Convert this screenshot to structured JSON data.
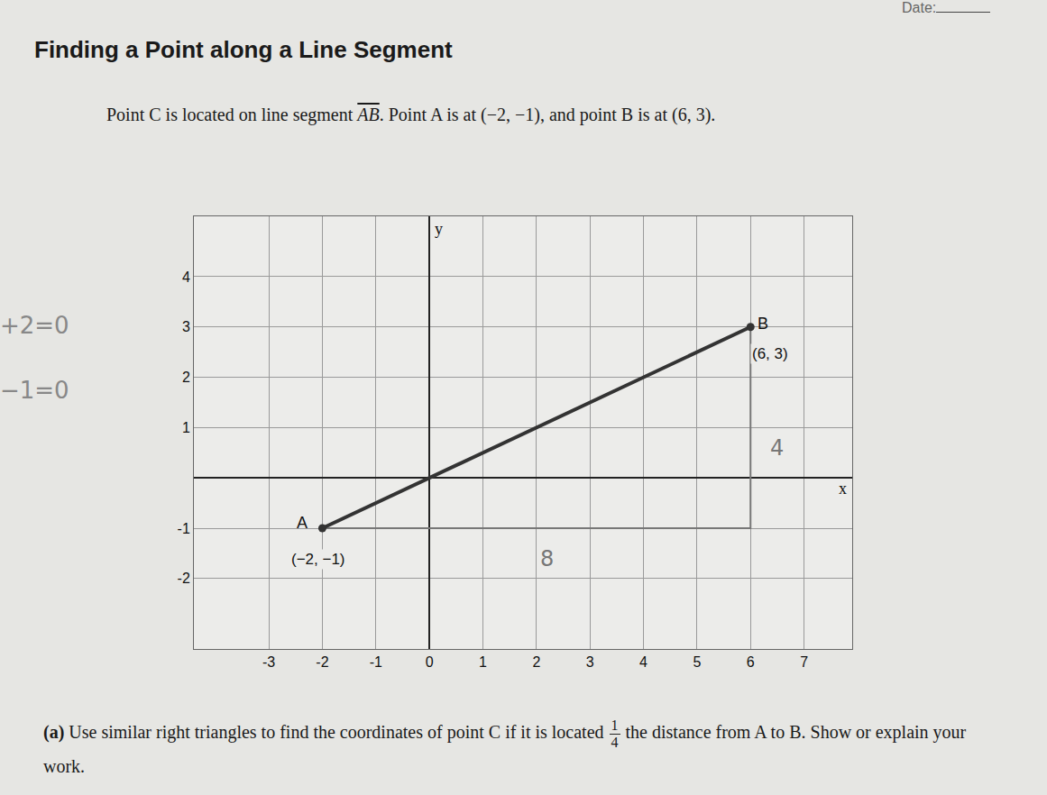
{
  "document": {
    "date_label": "Date:",
    "title": "Finding a Point along a Line Segment",
    "intro": {
      "before": "Point C is located on line segment",
      "segment": "AB",
      "after": ". Point A is at (−2, −1), and point B is at (6, 3)."
    },
    "margin_notes": [
      "+2=0",
      "−1=0"
    ],
    "question": {
      "label": "(a)",
      "before": "Use similar right triangles to find the coordinates of point C if it is located",
      "fraction": {
        "numerator": "1",
        "denominator": "4"
      },
      "after": "the distance from A to B. Show or explain your work."
    }
  },
  "chart_data": {
    "type": "line",
    "x_label": "x",
    "y_label": "y",
    "xlim": [
      -4.4,
      7.9
    ],
    "ylim": [
      -3.4,
      5.2
    ],
    "xticks": [
      -3,
      -2,
      -1,
      0,
      1,
      2,
      3,
      4,
      5,
      6,
      7
    ],
    "yticks": [
      -2,
      -1,
      1,
      2,
      3,
      4
    ],
    "grid": true,
    "segment": {
      "x": [
        -2,
        6
      ],
      "y": [
        -1,
        3
      ],
      "color": "#333333"
    },
    "triangle": {
      "x": [
        -2,
        6,
        6
      ],
      "y": [
        -1,
        -1,
        3
      ],
      "color": "#777777"
    },
    "points": [
      {
        "label": "A",
        "coords": "(−2, −1)",
        "x": -2,
        "y": -1
      },
      {
        "label": "B",
        "coords": "(6, 3)",
        "x": 6,
        "y": 3
      }
    ],
    "annotations": [
      {
        "text": "4",
        "x": 6.5,
        "y": 0.6
      },
      {
        "text": "8",
        "x": 2.2,
        "y": -1.6
      }
    ]
  }
}
